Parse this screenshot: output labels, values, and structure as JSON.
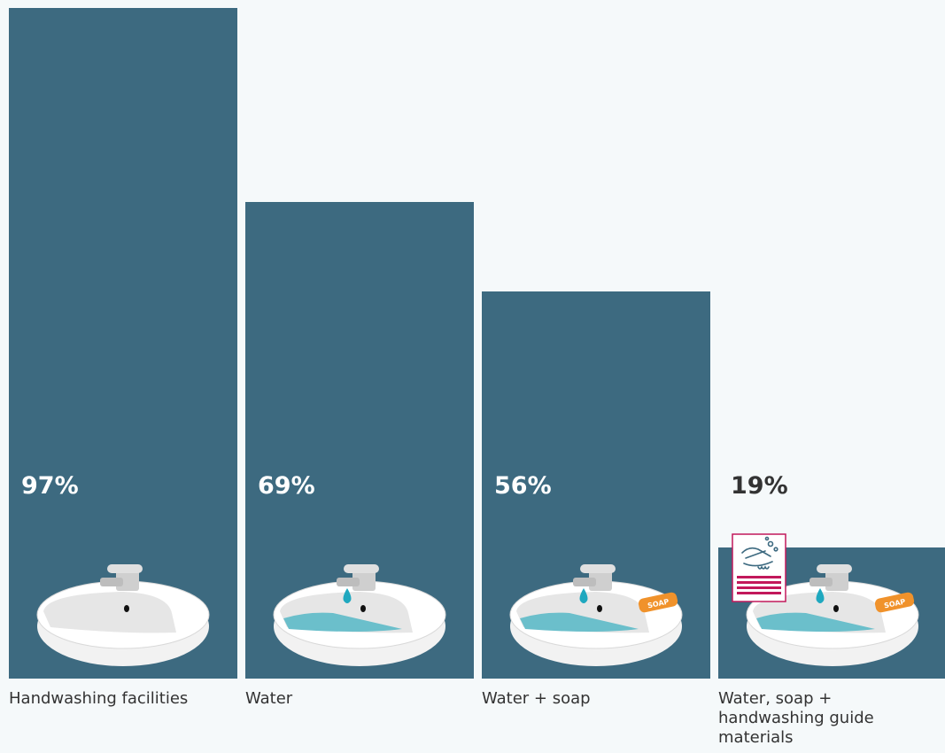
{
  "chart_data": {
    "type": "bar",
    "categories": [
      "Handwashing facilities",
      "Water",
      "Water + soap",
      "Water, soap + handwashing guide materials"
    ],
    "values": [
      97,
      69,
      56,
      19
    ],
    "value_labels": [
      "97%",
      "69%",
      "56%",
      "19%"
    ],
    "ylim": [
      0,
      100
    ],
    "grid": false,
    "legend": "none"
  },
  "icons": [
    [
      "sink-icon"
    ],
    [
      "sink-icon",
      "water-drop-icon"
    ],
    [
      "sink-icon",
      "water-drop-icon",
      "soap-icon"
    ],
    [
      "sink-icon",
      "water-drop-icon",
      "soap-icon",
      "handwashing-poster-icon"
    ]
  ],
  "soap_text": "SOAP",
  "colors": {
    "background": "#f5f9fa",
    "bar": "#3d6a80",
    "label_on_bar": "#ffffff",
    "label_off_bar": "#333333",
    "water": "#6bbfcb",
    "drop": "#1fa8bf",
    "soap": "#f0922b",
    "poster": "#c2185b"
  }
}
